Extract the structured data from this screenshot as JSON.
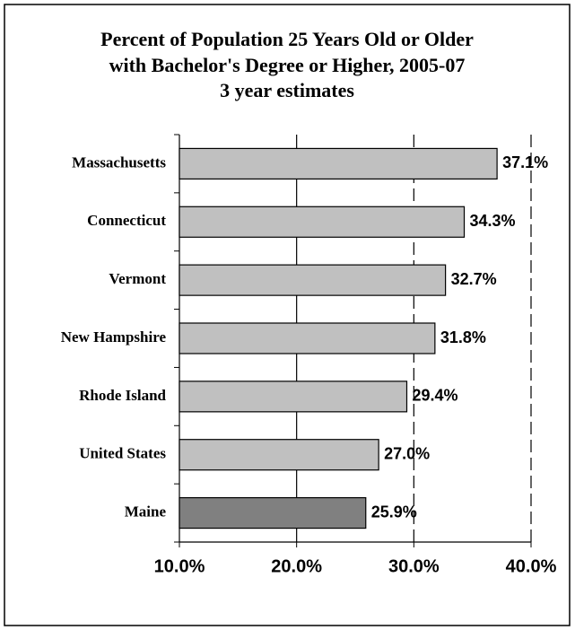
{
  "chart_data": {
    "type": "bar",
    "orientation": "horizontal",
    "title": [
      "Percent of Population 25 Years Old or Older",
      "with Bachelor's Degree or Higher, 2005-07",
      "3 year estimates"
    ],
    "categories": [
      "Massachusetts",
      "Connecticut",
      "Vermont",
      "New Hampshire",
      "Rhode Island",
      "United States",
      "Maine"
    ],
    "values": [
      37.1,
      34.3,
      32.7,
      31.8,
      29.4,
      27.0,
      25.9
    ],
    "value_labels": [
      "37.1%",
      "34.3%",
      "32.7%",
      "31.8%",
      "29.4%",
      "27.0%",
      "25.9%"
    ],
    "colors": [
      "#c0c0c0",
      "#c0c0c0",
      "#c0c0c0",
      "#c0c0c0",
      "#c0c0c0",
      "#c0c0c0",
      "#808080"
    ],
    "xlim": [
      10,
      40
    ],
    "xticks": [
      {
        "value": 10,
        "label": "10.0%"
      },
      {
        "value": 20,
        "label": "20.0%"
      },
      {
        "value": 30,
        "label": "30.0%"
      },
      {
        "value": 40,
        "label": "40.0%"
      }
    ],
    "grid": true
  }
}
